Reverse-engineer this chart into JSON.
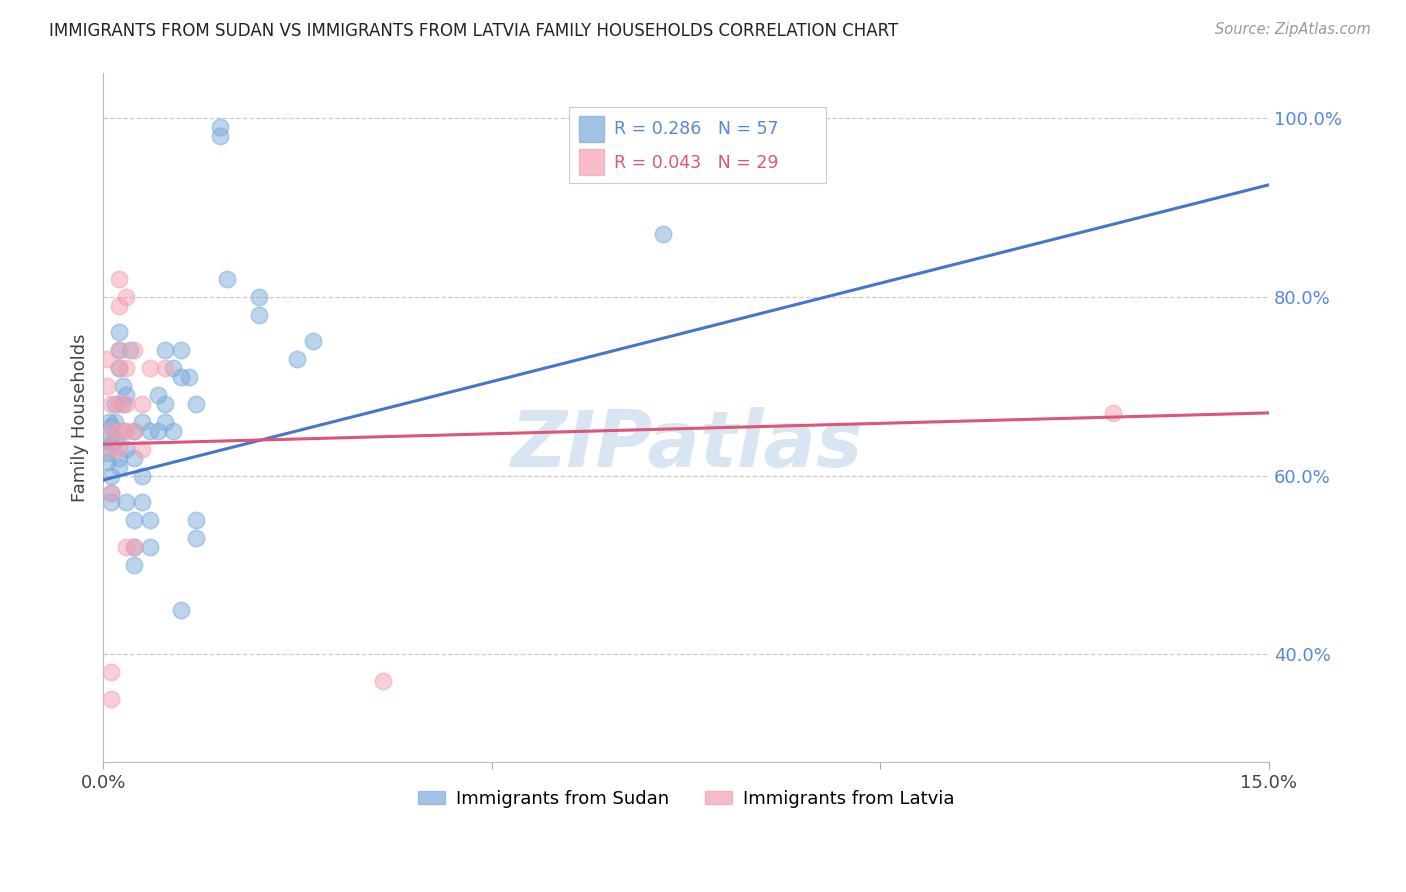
{
  "title": "IMMIGRANTS FROM SUDAN VS IMMIGRANTS FROM LATVIA FAMILY HOUSEHOLDS CORRELATION CHART",
  "source": "Source: ZipAtlas.com",
  "ylabel": "Family Households",
  "right_yticks": [
    "100.0%",
    "80.0%",
    "60.0%",
    "40.0%"
  ],
  "right_ytick_vals": [
    1.0,
    0.8,
    0.6,
    0.4
  ],
  "xlim": [
    0.0,
    0.15
  ],
  "ylim": [
    0.28,
    1.05
  ],
  "sudan_color": "#7aabdb",
  "latvia_color": "#f4a0b0",
  "regression_blue": "#4477cc",
  "regression_pink": "#dd5577",
  "watermark": "ZIPatlas",
  "sudan_points": [
    [
      0.0005,
      0.615
    ],
    [
      0.0005,
      0.625
    ],
    [
      0.0008,
      0.64
    ],
    [
      0.0008,
      0.66
    ],
    [
      0.001,
      0.635
    ],
    [
      0.001,
      0.655
    ],
    [
      0.001,
      0.6
    ],
    [
      0.001,
      0.58
    ],
    [
      0.001,
      0.57
    ],
    [
      0.0015,
      0.64
    ],
    [
      0.0015,
      0.66
    ],
    [
      0.0015,
      0.68
    ],
    [
      0.002,
      0.72
    ],
    [
      0.002,
      0.74
    ],
    [
      0.002,
      0.62
    ],
    [
      0.002,
      0.61
    ],
    [
      0.002,
      0.76
    ],
    [
      0.0025,
      0.65
    ],
    [
      0.0025,
      0.68
    ],
    [
      0.0025,
      0.7
    ],
    [
      0.003,
      0.63
    ],
    [
      0.003,
      0.57
    ],
    [
      0.003,
      0.69
    ],
    [
      0.0035,
      0.74
    ],
    [
      0.004,
      0.65
    ],
    [
      0.004,
      0.62
    ],
    [
      0.004,
      0.55
    ],
    [
      0.004,
      0.52
    ],
    [
      0.004,
      0.5
    ],
    [
      0.005,
      0.66
    ],
    [
      0.005,
      0.6
    ],
    [
      0.005,
      0.57
    ],
    [
      0.006,
      0.65
    ],
    [
      0.006,
      0.55
    ],
    [
      0.006,
      0.52
    ],
    [
      0.007,
      0.69
    ],
    [
      0.007,
      0.65
    ],
    [
      0.008,
      0.74
    ],
    [
      0.008,
      0.68
    ],
    [
      0.008,
      0.66
    ],
    [
      0.009,
      0.72
    ],
    [
      0.009,
      0.65
    ],
    [
      0.01,
      0.74
    ],
    [
      0.01,
      0.71
    ],
    [
      0.01,
      0.45
    ],
    [
      0.011,
      0.71
    ],
    [
      0.012,
      0.68
    ],
    [
      0.012,
      0.55
    ],
    [
      0.012,
      0.53
    ],
    [
      0.015,
      0.98
    ],
    [
      0.016,
      0.82
    ],
    [
      0.02,
      0.8
    ],
    [
      0.02,
      0.78
    ],
    [
      0.025,
      0.73
    ],
    [
      0.027,
      0.75
    ],
    [
      0.072,
      0.87
    ],
    [
      0.015,
      0.99
    ]
  ],
  "latvia_points": [
    [
      0.0005,
      0.73
    ],
    [
      0.0005,
      0.7
    ],
    [
      0.001,
      0.68
    ],
    [
      0.001,
      0.65
    ],
    [
      0.001,
      0.63
    ],
    [
      0.001,
      0.58
    ],
    [
      0.001,
      0.38
    ],
    [
      0.001,
      0.35
    ],
    [
      0.002,
      0.82
    ],
    [
      0.002,
      0.79
    ],
    [
      0.002,
      0.74
    ],
    [
      0.002,
      0.72
    ],
    [
      0.002,
      0.68
    ],
    [
      0.002,
      0.65
    ],
    [
      0.002,
      0.63
    ],
    [
      0.003,
      0.8
    ],
    [
      0.003,
      0.72
    ],
    [
      0.003,
      0.68
    ],
    [
      0.003,
      0.65
    ],
    [
      0.003,
      0.52
    ],
    [
      0.004,
      0.74
    ],
    [
      0.004,
      0.65
    ],
    [
      0.004,
      0.52
    ],
    [
      0.005,
      0.68
    ],
    [
      0.005,
      0.63
    ],
    [
      0.006,
      0.72
    ],
    [
      0.008,
      0.72
    ],
    [
      0.036,
      0.37
    ],
    [
      0.13,
      0.67
    ]
  ]
}
